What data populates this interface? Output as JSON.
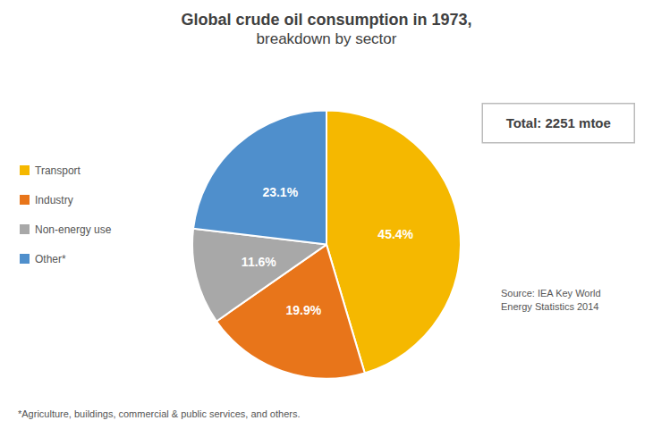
{
  "chart_data": {
    "type": "pie",
    "title": "Global crude oil consumption in 1973,",
    "subtitle": "breakdown by sector",
    "categories": [
      "Transport",
      "Industry",
      "Non-energy use",
      "Other*"
    ],
    "values": [
      45.4,
      19.9,
      11.6,
      23.1
    ],
    "value_labels": [
      "45.4%",
      "19.9%",
      "11.6%",
      "23.1%"
    ],
    "colors": [
      "#F5B800",
      "#E8751A",
      "#A8A8A8",
      "#4F8FCC"
    ],
    "data_labels": true,
    "legend": "left",
    "annotations": [
      "Total: 2251 mtoe",
      "Source: IEA Key World\nEnergy Statistics 2014",
      "*Agriculture, buildings, commercial & public services, and others."
    ]
  }
}
